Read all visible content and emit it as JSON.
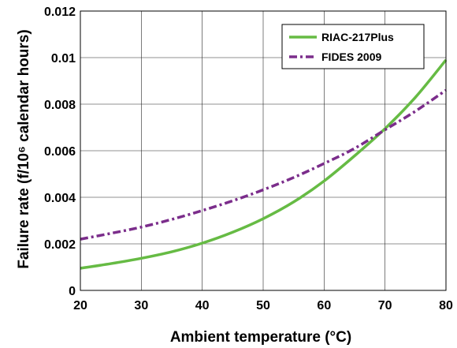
{
  "chart_data": {
    "type": "line",
    "xlabel": "Ambient temperature",
    "xlabel_unit": "(°C)",
    "ylabel": "Failure rate",
    "ylabel_unit": "(f/10⁶ calendar hours)",
    "xlim": [
      20,
      80
    ],
    "ylim": [
      0,
      0.012
    ],
    "xticks": [
      20,
      30,
      40,
      50,
      60,
      70,
      80
    ],
    "xtick_labels": [
      "20",
      "30",
      "40",
      "50",
      "60",
      "70",
      "80"
    ],
    "yticks": [
      0,
      0.002,
      0.004,
      0.006,
      0.008,
      0.01,
      0.012
    ],
    "ytick_labels": [
      "0",
      "0.002",
      "0.004",
      "0.006",
      "0.008",
      "0.01",
      "0.012"
    ],
    "grid": true,
    "legend_position": "top-right",
    "series": [
      {
        "name": "RIAC-217Plus",
        "color": "#66bb44",
        "style": "solid",
        "x": [
          20,
          25,
          30,
          35,
          40,
          45,
          50,
          55,
          60,
          65,
          70,
          75,
          80
        ],
        "y": [
          0.00095,
          0.00115,
          0.00138,
          0.00166,
          0.00203,
          0.0025,
          0.00308,
          0.0038,
          0.0047,
          0.00578,
          0.00695,
          0.0083,
          0.0099
        ]
      },
      {
        "name": "FIDES 2009",
        "color": "#7b2d8b",
        "style": "dashdot",
        "x": [
          20,
          25,
          30,
          35,
          40,
          45,
          50,
          55,
          60,
          65,
          70,
          75,
          80
        ],
        "y": [
          0.0022,
          0.00245,
          0.00272,
          0.00305,
          0.00343,
          0.00385,
          0.00432,
          0.00485,
          0.00545,
          0.0061,
          0.0069,
          0.0077,
          0.0086
        ]
      }
    ]
  }
}
